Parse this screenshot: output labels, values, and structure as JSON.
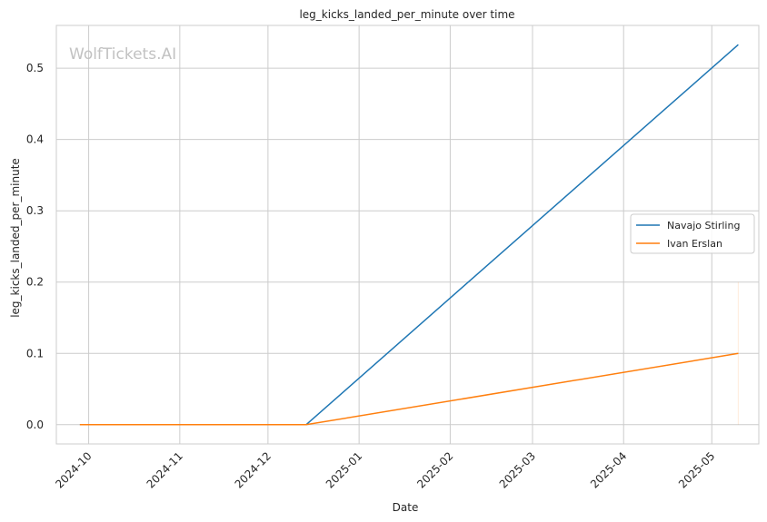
{
  "watermark": "WolfTickets.AI",
  "chart_data": {
    "type": "line",
    "title": "leg_kicks_landed_per_minute over time",
    "xlabel": "Date",
    "ylabel": "leg_kicks_landed_per_minute",
    "x_ticks": [
      "2024-10",
      "2024-11",
      "2024-12",
      "2025-01",
      "2025-02",
      "2025-03",
      "2025-04",
      "2025-05"
    ],
    "y_ticks": [
      "0.0",
      "0.1",
      "0.2",
      "0.3",
      "0.4",
      "0.5"
    ],
    "xlim": [
      "2024-09-20",
      "2025-05-17"
    ],
    "ylim": [
      -0.027,
      0.56
    ],
    "grid": true,
    "legend_position": "center-right",
    "series": [
      {
        "name": "Navajo Stirling",
        "color": "#1f77b4",
        "points": [
          {
            "x": "2024-09-28",
            "y": 0.0
          },
          {
            "x": "2024-12-14",
            "y": 0.0
          },
          {
            "x": "2025-05-10",
            "y": 0.533
          }
        ]
      },
      {
        "name": "Ivan Erslan",
        "color": "#ff7f0e",
        "points": [
          {
            "x": "2024-09-28",
            "y": 0.0
          },
          {
            "x": "2024-12-14",
            "y": 0.0
          },
          {
            "x": "2025-05-10",
            "y": 0.1
          }
        ]
      }
    ]
  }
}
